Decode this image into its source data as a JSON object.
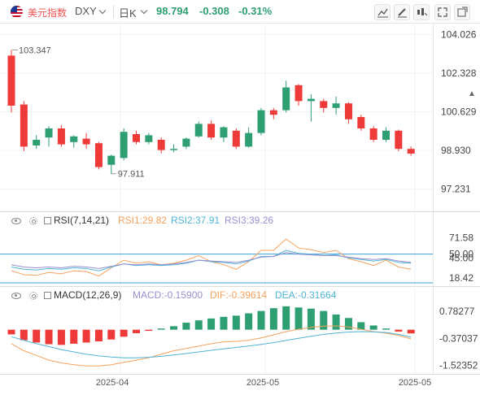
{
  "header": {
    "name": "美元指数",
    "symbol": "DXY",
    "interval": "日K",
    "price": "98.794",
    "change": "-0.308",
    "change_pct": "-0.31%"
  },
  "toolbar": {
    "icons": [
      "line-chart-icon",
      "pencil-icon",
      "indicator-icon",
      "fullscreen-icon",
      "popup-icon"
    ]
  },
  "rsi_header": {
    "label": "RSI(7,14,21)",
    "rsi1": "RSI1:29.82",
    "rsi2": "RSI2:37.91",
    "rsi3": "RSI3:39.26"
  },
  "macd_header": {
    "label": "MACD(12,26,9)",
    "macd": "MACD:-0.15900",
    "dif": "DIF:-0.39614",
    "dea": "DEA:-0.31664"
  },
  "colors": {
    "up": "#2e9e73",
    "down": "#ef3a3a",
    "rsi1": "#f5a25d",
    "rsi2": "#4fb5d6",
    "rsi3": "#9a8fd0",
    "dif": "#f5a25d",
    "dea": "#4fb5d6",
    "ref_line": "#3a9fd8"
  },
  "chart_data": [
    {
      "type": "candlestick",
      "y_ticks": [
        "104.026",
        "102.328",
        "100.629",
        "98.930",
        "97.231"
      ],
      "ylim": [
        96.4,
        104.4
      ],
      "x_labels": [
        "2025-04",
        "2025-05",
        "2025-05"
      ],
      "annotations": {
        "high": "103.347",
        "low": "97.911"
      },
      "candles": [
        {
          "o": 103.1,
          "h": 103.35,
          "c": 100.9,
          "l": 100.6
        },
        {
          "o": 100.95,
          "h": 101.1,
          "c": 99.1,
          "l": 98.9
        },
        {
          "o": 99.15,
          "h": 99.6,
          "c": 99.4,
          "l": 99.0
        },
        {
          "o": 99.5,
          "h": 100.0,
          "c": 99.9,
          "l": 99.1
        },
        {
          "o": 99.9,
          "h": 100.05,
          "c": 99.2,
          "l": 99.1
        },
        {
          "o": 99.3,
          "h": 99.6,
          "c": 99.55,
          "l": 99.05
        },
        {
          "o": 99.45,
          "h": 99.7,
          "c": 99.2,
          "l": 99.0
        },
        {
          "o": 99.25,
          "h": 99.3,
          "c": 98.2,
          "l": 98.1
        },
        {
          "o": 98.3,
          "h": 98.75,
          "c": 98.7,
          "l": 97.91
        },
        {
          "o": 98.6,
          "h": 99.9,
          "c": 99.75,
          "l": 98.5
        },
        {
          "o": 99.65,
          "h": 99.8,
          "c": 99.3,
          "l": 99.2
        },
        {
          "o": 99.3,
          "h": 99.7,
          "c": 99.6,
          "l": 99.2
        },
        {
          "o": 99.4,
          "h": 99.5,
          "c": 98.95,
          "l": 98.8
        },
        {
          "o": 98.95,
          "h": 99.2,
          "c": 99.0,
          "l": 98.85
        },
        {
          "o": 99.1,
          "h": 99.5,
          "c": 99.45,
          "l": 99.0
        },
        {
          "o": 99.55,
          "h": 100.2,
          "c": 100.1,
          "l": 99.5
        },
        {
          "o": 100.1,
          "h": 100.25,
          "c": 99.5,
          "l": 99.4
        },
        {
          "o": 99.5,
          "h": 100.0,
          "c": 99.95,
          "l": 99.3
        },
        {
          "o": 99.8,
          "h": 99.9,
          "c": 99.1,
          "l": 99.0
        },
        {
          "o": 99.1,
          "h": 99.95,
          "c": 99.7,
          "l": 99.05
        },
        {
          "o": 99.7,
          "h": 100.8,
          "c": 100.7,
          "l": 99.6
        },
        {
          "o": 100.7,
          "h": 100.8,
          "c": 100.5,
          "l": 100.3
        },
        {
          "o": 100.7,
          "h": 102.0,
          "c": 101.7,
          "l": 100.6
        },
        {
          "o": 101.8,
          "h": 101.85,
          "c": 101.1,
          "l": 100.9
        },
        {
          "o": 101.1,
          "h": 101.4,
          "c": 101.2,
          "l": 100.2
        },
        {
          "o": 101.1,
          "h": 101.2,
          "c": 100.8,
          "l": 100.6
        },
        {
          "o": 100.8,
          "h": 101.3,
          "c": 101.0,
          "l": 100.5
        },
        {
          "o": 101.0,
          "h": 101.05,
          "c": 100.3,
          "l": 100.1
        },
        {
          "o": 100.4,
          "h": 100.5,
          "c": 99.9,
          "l": 99.8
        },
        {
          "o": 99.9,
          "h": 100.0,
          "c": 99.4,
          "l": 99.3
        },
        {
          "o": 99.4,
          "h": 99.95,
          "c": 99.8,
          "l": 99.3
        },
        {
          "o": 99.8,
          "h": 99.85,
          "c": 99.0,
          "l": 98.9
        },
        {
          "o": 99.0,
          "h": 99.1,
          "c": 98.794,
          "l": 98.7
        }
      ]
    },
    {
      "type": "line",
      "name": "RSI",
      "y_ticks": [
        "71.58",
        "50.00",
        "45.00",
        "18.42"
      ],
      "ylim": [
        10,
        85
      ],
      "reference_line": 50,
      "series": [
        {
          "name": "RSI1",
          "values": [
            28,
            23,
            22,
            26,
            24,
            28,
            27,
            21,
            32,
            42,
            38,
            40,
            36,
            38,
            42,
            48,
            40,
            36,
            30,
            40,
            55,
            55,
            70,
            58,
            56,
            52,
            55,
            44,
            40,
            35,
            42,
            33,
            30
          ]
        },
        {
          "name": "RSI2",
          "values": [
            33,
            30,
            29,
            31,
            30,
            32,
            31,
            28,
            33,
            37,
            35,
            36,
            35,
            36,
            38,
            42,
            40,
            39,
            37,
            41,
            47,
            47,
            55,
            51,
            50,
            48,
            49,
            45,
            43,
            41,
            43,
            39,
            38
          ]
        },
        {
          "name": "RSI3",
          "values": [
            36,
            33,
            32,
            33,
            32,
            34,
            33,
            31,
            34,
            37,
            36,
            37,
            36,
            37,
            39,
            42,
            41,
            40,
            39,
            42,
            46,
            47,
            52,
            50,
            49,
            48,
            48,
            46,
            44,
            43,
            44,
            41,
            39
          ]
        }
      ]
    },
    {
      "type": "bar+line",
      "name": "MACD",
      "y_ticks": [
        "0.78277",
        "-0.37037",
        "-1.52352"
      ],
      "ylim": [
        -1.75,
        1.1
      ],
      "macd_hist": [
        -0.2,
        -0.45,
        -0.55,
        -0.62,
        -0.65,
        -0.6,
        -0.55,
        -0.5,
        -0.42,
        -0.3,
        -0.15,
        -0.05,
        0.05,
        0.15,
        0.3,
        0.4,
        0.48,
        0.55,
        0.6,
        0.7,
        0.8,
        0.92,
        1.0,
        0.95,
        0.9,
        0.8,
        0.65,
        0.5,
        0.32,
        0.18,
        0.05,
        -0.08,
        -0.159
      ],
      "dif": [
        -0.6,
        -0.9,
        -1.1,
        -1.3,
        -1.42,
        -1.5,
        -1.55,
        -1.55,
        -1.5,
        -1.4,
        -1.3,
        -1.2,
        -1.05,
        -0.9,
        -0.8,
        -0.7,
        -0.6,
        -0.52,
        -0.5,
        -0.45,
        -0.35,
        -0.22,
        -0.08,
        0.02,
        0.1,
        0.15,
        0.16,
        0.12,
        0.02,
        -0.08,
        -0.15,
        -0.25,
        -0.396
      ],
      "dea": [
        -0.3,
        -0.45,
        -0.6,
        -0.72,
        -0.85,
        -0.95,
        -1.05,
        -1.12,
        -1.17,
        -1.2,
        -1.2,
        -1.18,
        -1.14,
        -1.08,
        -1.02,
        -0.95,
        -0.88,
        -0.82,
        -0.76,
        -0.7,
        -0.63,
        -0.55,
        -0.46,
        -0.37,
        -0.28,
        -0.2,
        -0.14,
        -0.1,
        -0.08,
        -0.09,
        -0.12,
        -0.2,
        -0.317
      ]
    }
  ]
}
